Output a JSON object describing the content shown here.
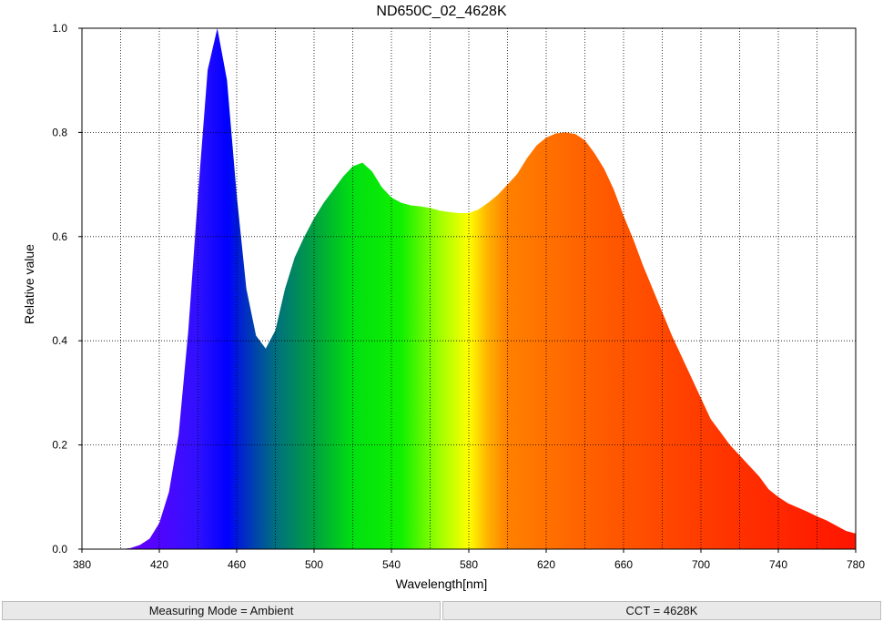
{
  "chart_data": {
    "type": "area",
    "title": "ND650C_02_4628K",
    "x_label": "Wavelength[nm]",
    "y_label": "Relative value",
    "x": [
      380,
      385,
      390,
      395,
      400,
      405,
      410,
      415,
      420,
      425,
      430,
      435,
      440,
      445,
      450,
      455,
      460,
      465,
      470,
      475,
      480,
      485,
      490,
      495,
      500,
      505,
      510,
      515,
      520,
      525,
      530,
      535,
      540,
      545,
      550,
      555,
      560,
      565,
      570,
      575,
      580,
      585,
      590,
      595,
      600,
      605,
      610,
      615,
      620,
      625,
      630,
      635,
      640,
      645,
      650,
      655,
      660,
      665,
      670,
      675,
      680,
      685,
      690,
      695,
      700,
      705,
      710,
      715,
      720,
      725,
      730,
      735,
      740,
      745,
      750,
      755,
      760,
      765,
      770,
      775,
      780
    ],
    "values": [
      0,
      0,
      0,
      0,
      0,
      0.002,
      0.008,
      0.02,
      0.05,
      0.11,
      0.22,
      0.42,
      0.68,
      0.92,
      1.0,
      0.9,
      0.68,
      0.5,
      0.41,
      0.385,
      0.42,
      0.5,
      0.56,
      0.6,
      0.635,
      0.665,
      0.69,
      0.715,
      0.735,
      0.742,
      0.725,
      0.695,
      0.675,
      0.665,
      0.66,
      0.658,
      0.655,
      0.65,
      0.647,
      0.645,
      0.645,
      0.652,
      0.665,
      0.68,
      0.7,
      0.72,
      0.75,
      0.775,
      0.79,
      0.798,
      0.8,
      0.797,
      0.785,
      0.76,
      0.73,
      0.69,
      0.64,
      0.595,
      0.545,
      0.5,
      0.455,
      0.41,
      0.37,
      0.33,
      0.29,
      0.25,
      0.225,
      0.2,
      0.18,
      0.16,
      0.14,
      0.115,
      0.1,
      0.088,
      0.08,
      0.072,
      0.063,
      0.055,
      0.045,
      0.035,
      0.03
    ],
    "xlim": [
      380,
      780
    ],
    "xticks": [
      380,
      420,
      460,
      500,
      540,
      580,
      620,
      660,
      700,
      740,
      780
    ],
    "xminor": [
      400,
      440,
      480,
      520,
      560,
      600,
      640,
      680,
      720,
      760
    ],
    "ylim": [
      0,
      1
    ],
    "yticks": [
      {
        "value": 0,
        "label": "0.0"
      },
      0.2,
      0.4,
      0.6,
      0.8,
      {
        "value": 1,
        "label": "1.0"
      }
    ],
    "grid": true
  },
  "status_bar": [
    "Measuring Mode = Ambient",
    "CCT = 4628K"
  ]
}
